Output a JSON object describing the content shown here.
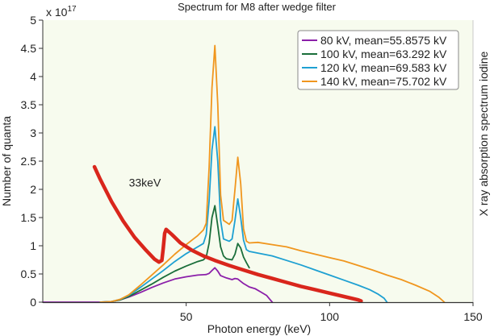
{
  "chart_data": {
    "type": "line",
    "title": "Spectrum for M8 after wedge filter",
    "xlabel": "Photon energy (keV)",
    "ylabel": "Number of quanta",
    "right_label": "X ray absorption spectrum iodine",
    "y_multiplier": "x 10",
    "y_multiplier_exp": "17",
    "xlim": [
      0,
      150
    ],
    "ylim": [
      0,
      5
    ],
    "xticks": [
      50,
      100,
      150
    ],
    "xtick_labels": [
      "50",
      "100",
      "150"
    ],
    "yticks": [
      0,
      0.5,
      1,
      1.5,
      2,
      2.5,
      3,
      3.5,
      4,
      4.5,
      5
    ],
    "ytick_labels": [
      "0",
      "0.5",
      "1",
      "1.5",
      "2",
      "2.5",
      "3",
      "3.5",
      "4",
      "4.5",
      "5"
    ],
    "grid": false,
    "legend_position": "top-right",
    "annotation": {
      "text": "33keV",
      "x": 30,
      "y": 2.05
    },
    "series": [
      {
        "name": "80 kV, mean=55.8575 kV",
        "color": "#8b1fa9",
        "x": [
          0,
          20,
          24,
          27,
          30,
          34,
          38,
          42,
          46,
          50,
          54,
          57,
          58,
          59,
          60,
          61,
          62,
          64,
          66,
          67,
          68,
          70,
          72,
          74,
          76,
          78,
          79,
          80
        ],
        "y": [
          0,
          0,
          0.01,
          0.04,
          0.09,
          0.17,
          0.26,
          0.34,
          0.41,
          0.45,
          0.48,
          0.49,
          0.51,
          0.56,
          0.61,
          0.55,
          0.47,
          0.43,
          0.4,
          0.42,
          0.41,
          0.33,
          0.27,
          0.24,
          0.18,
          0.12,
          0.06,
          0
        ]
      },
      {
        "name": "100 kV, mean=63.292 kV",
        "color": "#1a6e3a",
        "x": [
          20,
          24,
          27,
          30,
          34,
          38,
          42,
          46,
          50,
          54,
          56,
          57,
          58,
          59,
          60,
          61,
          62,
          63,
          64,
          66,
          67,
          68,
          69,
          70,
          71,
          72
        ],
        "y": [
          0,
          0.01,
          0.04,
          0.1,
          0.21,
          0.32,
          0.44,
          0.55,
          0.64,
          0.72,
          0.75,
          0.8,
          1.05,
          1.5,
          1.71,
          1.35,
          0.98,
          0.82,
          0.77,
          0.75,
          0.85,
          1.04,
          0.96,
          0.8,
          0.7,
          0.61
        ]
      },
      {
        "name": "120 kV, mean=69.583 kV",
        "color": "#1ea0d2",
        "x": [
          20,
          24,
          27,
          30,
          34,
          38,
          42,
          46,
          50,
          54,
          56,
          57,
          58,
          59,
          60,
          61,
          62,
          63,
          65,
          66,
          67,
          68,
          69,
          70,
          71,
          72,
          75,
          80,
          85,
          90,
          95,
          100,
          105,
          110,
          114,
          117,
          119,
          120
        ],
        "y": [
          0,
          0.01,
          0.05,
          0.12,
          0.26,
          0.41,
          0.56,
          0.72,
          0.86,
          0.98,
          1.04,
          1.2,
          1.8,
          2.7,
          3.11,
          2.5,
          1.45,
          1.12,
          1.08,
          1.12,
          1.45,
          1.83,
          1.5,
          1.1,
          0.93,
          0.9,
          0.87,
          0.82,
          0.74,
          0.66,
          0.57,
          0.48,
          0.39,
          0.3,
          0.22,
          0.14,
          0.07,
          0
        ]
      },
      {
        "name": "140 kV, mean=75.702 kV",
        "color": "#f0961e",
        "x": [
          20,
          24,
          27,
          30,
          34,
          38,
          42,
          46,
          50,
          54,
          56,
          57,
          58,
          59,
          60,
          61,
          62,
          63,
          65,
          66,
          67,
          68,
          69,
          70,
          71,
          72,
          75,
          80,
          85,
          90,
          95,
          100,
          105,
          110,
          115,
          120,
          125,
          130,
          135,
          138,
          140
        ],
        "y": [
          0,
          0.01,
          0.05,
          0.13,
          0.3,
          0.48,
          0.66,
          0.85,
          1.02,
          1.18,
          1.28,
          1.4,
          2.4,
          3.8,
          4.55,
          3.5,
          1.9,
          1.45,
          1.38,
          1.45,
          2.0,
          2.57,
          2.1,
          1.3,
          1.08,
          1.05,
          1.06,
          1.02,
          0.98,
          0.91,
          0.85,
          0.79,
          0.73,
          0.65,
          0.57,
          0.48,
          0.4,
          0.3,
          0.19,
          0.09,
          0
        ]
      },
      {
        "name": "X ray absorption spectrum iodine",
        "color": "#d9261c",
        "in_legend": false,
        "x": [
          18,
          20,
          24,
          28,
          32,
          36,
          39,
          40.5,
          41.5,
          42,
          42.5,
          43,
          45,
          48,
          52,
          56,
          60,
          65,
          70,
          75,
          80,
          85,
          90,
          95,
          100,
          105,
          110,
          111
        ],
        "y": [
          2.4,
          2.18,
          1.78,
          1.44,
          1.15,
          0.92,
          0.76,
          0.71,
          0.74,
          0.95,
          1.22,
          1.29,
          1.2,
          1.05,
          0.92,
          0.82,
          0.74,
          0.65,
          0.57,
          0.49,
          0.42,
          0.35,
          0.28,
          0.22,
          0.16,
          0.1,
          0.04,
          0.02
        ]
      }
    ]
  }
}
